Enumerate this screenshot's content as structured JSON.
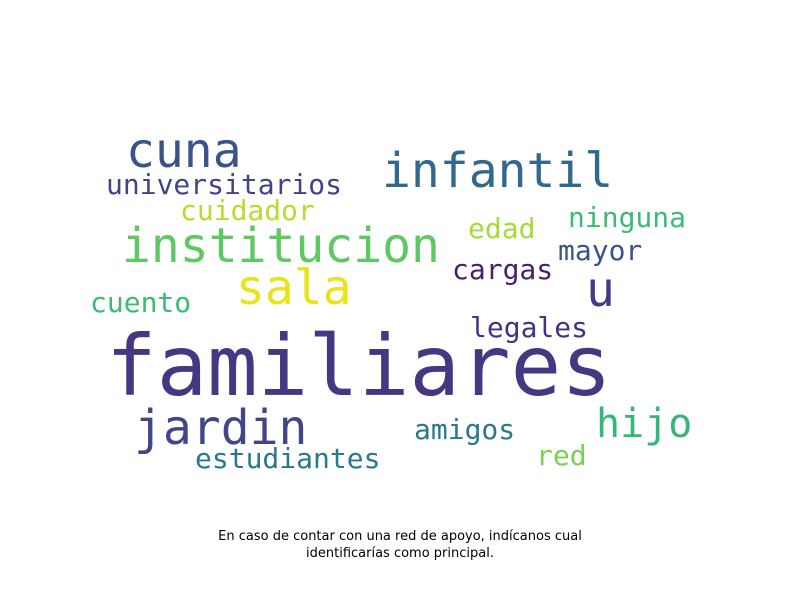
{
  "chart_data": {
    "type": "wordcloud",
    "words": [
      {
        "text": "familiares",
        "color": "#453781"
      },
      {
        "text": "institucion",
        "color": "#5ec962"
      },
      {
        "text": "infantil",
        "color": "#31688e"
      },
      {
        "text": "cuna",
        "color": "#3b528b"
      },
      {
        "text": "sala",
        "color": "#e8e419"
      },
      {
        "text": "jardin",
        "color": "#404688"
      },
      {
        "text": "hijo",
        "color": "#35b779"
      },
      {
        "text": "u",
        "color": "#443983"
      },
      {
        "text": "universitarios",
        "color": "#414487"
      },
      {
        "text": "estudiantes",
        "color": "#2a788e"
      },
      {
        "text": "cuidador",
        "color": "#b5de2b"
      },
      {
        "text": "ninguna",
        "color": "#3cbb75"
      },
      {
        "text": "edad",
        "color": "#a5db36"
      },
      {
        "text": "mayor",
        "color": "#3b528b"
      },
      {
        "text": "cargas",
        "color": "#481f70"
      },
      {
        "text": "legales",
        "color": "#46337e"
      },
      {
        "text": "cuento",
        "color": "#3cbb75"
      },
      {
        "text": "amigos",
        "color": "#2a788e"
      },
      {
        "text": "red",
        "color": "#7ad151"
      }
    ]
  },
  "caption": {
    "line1": "En caso de contar con una red de apoyo, indícanos cual",
    "line2": "identificarías como principal."
  }
}
